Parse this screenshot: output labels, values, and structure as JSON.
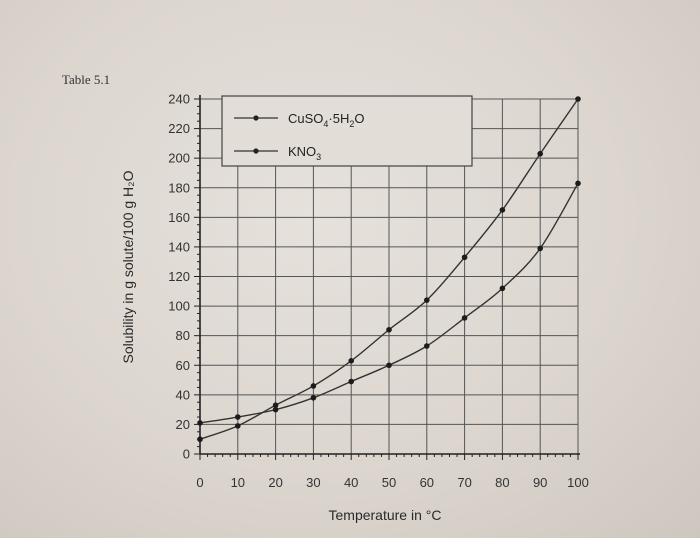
{
  "caption": "Table 5.1",
  "chart_data": {
    "type": "line",
    "title": "",
    "xlabel": "Temperature in °C",
    "ylabel": "Solubility in g solute/100 g H₂O",
    "xlim": [
      0,
      100
    ],
    "ylim": [
      0,
      240
    ],
    "xticks": [
      0,
      10,
      20,
      30,
      40,
      50,
      60,
      70,
      80,
      90,
      100
    ],
    "yticks": [
      0,
      20,
      40,
      60,
      80,
      100,
      120,
      140,
      160,
      180,
      200,
      220,
      240
    ],
    "grid": true,
    "legend_position": "top-left",
    "x": [
      0,
      10,
      20,
      30,
      40,
      50,
      60,
      70,
      80,
      90,
      100
    ],
    "series": [
      {
        "name": "CuSO4·5H2O",
        "values": [
          21,
          25,
          30,
          38,
          49,
          60,
          73,
          92,
          112,
          139,
          183
        ]
      },
      {
        "name": "KNO3",
        "values": [
          10,
          19,
          33,
          46,
          63,
          84,
          104,
          133,
          165,
          203,
          240
        ]
      }
    ]
  }
}
